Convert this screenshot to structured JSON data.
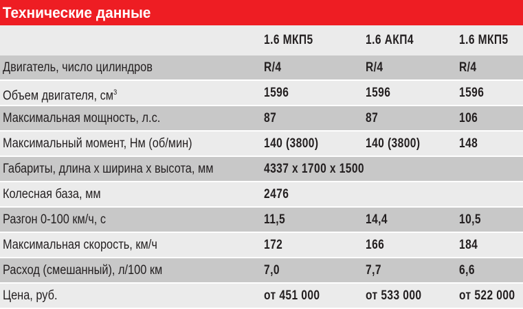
{
  "title": "Технические данные",
  "columns": [
    "1.6 МКП5",
    "1.6 АКП4",
    "1.6 МКП5"
  ],
  "rows": [
    {
      "label": "Двигатель, число цилиндров",
      "values": [
        "R/4",
        "R/4",
        "R/4"
      ]
    },
    {
      "label": "Объем двигателя, см",
      "sup": "3",
      "values": [
        "1596",
        "1596",
        "1596"
      ]
    },
    {
      "label": "Максимальная мощность, л.с.",
      "values": [
        "87",
        "87",
        "106"
      ]
    },
    {
      "label": "Максимальный момент, Нм (об/мин)",
      "values": [
        "140 (3800)",
        "140 (3800)",
        "148"
      ]
    },
    {
      "label": "Габариты, длина x ширина x высота, мм",
      "values": [
        "4337 x 1700 x 1500"
      ]
    },
    {
      "label": "Колесная база, мм",
      "values": [
        "2476"
      ]
    },
    {
      "label": "Разгон 0-100 км/ч, с",
      "values": [
        "11,5",
        "14,4",
        "10,5"
      ]
    },
    {
      "label": "Максимальная скорость, км/ч",
      "values": [
        "172",
        "166",
        "184"
      ]
    },
    {
      "label": "Расход (смешанный), л/100 км",
      "values": [
        "7,0",
        "7,7",
        "6,6"
      ]
    },
    {
      "label": "Цена, руб.",
      "values": [
        "от 451 000",
        "от 533 000",
        "от 522 000"
      ]
    }
  ],
  "colors": {
    "header": "#ee1d23",
    "row_dark": "#c8c8c8",
    "row_light": "#ebebeb"
  }
}
